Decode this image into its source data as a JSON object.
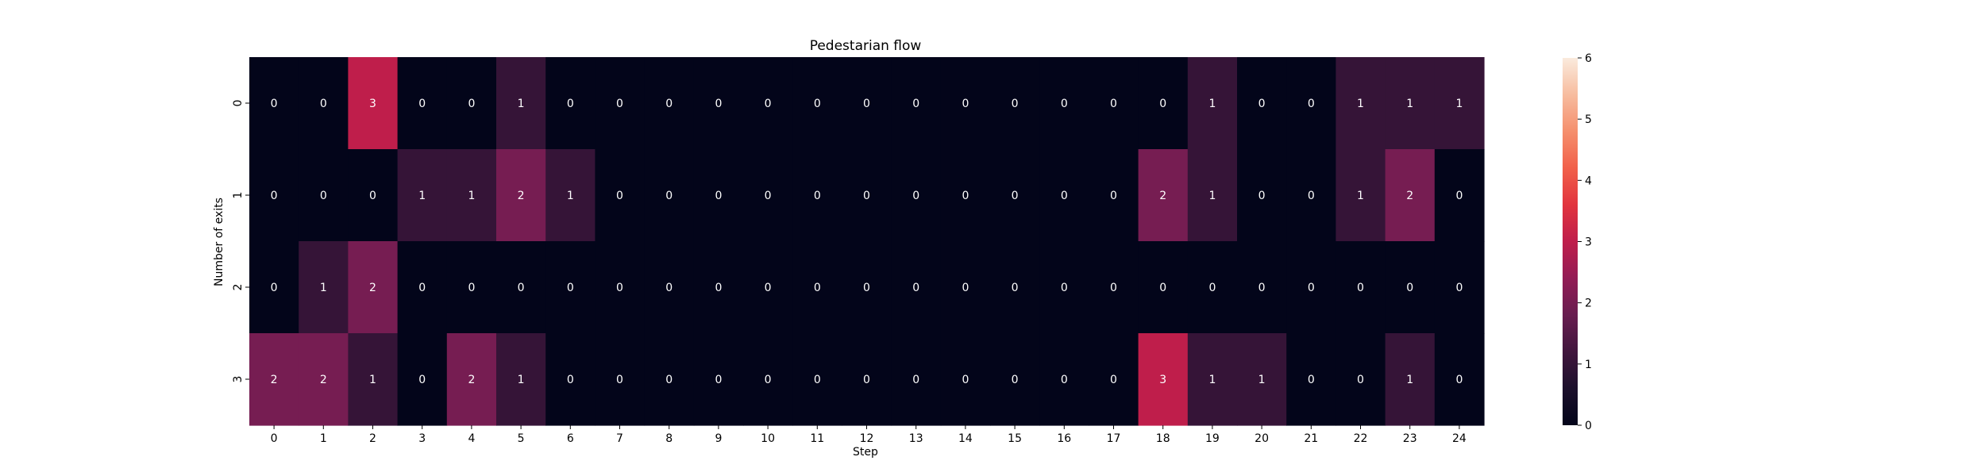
{
  "chart_data": {
    "type": "heatmap",
    "title": "Pedestarian flow",
    "xlabel": "Step",
    "ylabel": "Number of exits",
    "x_labels": [
      "0",
      "1",
      "2",
      "3",
      "4",
      "5",
      "6",
      "7",
      "8",
      "9",
      "10",
      "11",
      "12",
      "13",
      "14",
      "15",
      "16",
      "17",
      "18",
      "19",
      "20",
      "21",
      "22",
      "23",
      "24"
    ],
    "y_labels": [
      "0",
      "1",
      "2",
      "3"
    ],
    "values": [
      [
        0,
        0,
        3,
        0,
        0,
        1,
        0,
        0,
        0,
        0,
        0,
        0,
        0,
        0,
        0,
        0,
        0,
        0,
        0,
        1,
        0,
        0,
        1,
        1,
        1
      ],
      [
        0,
        0,
        0,
        1,
        1,
        2,
        1,
        0,
        0,
        0,
        0,
        0,
        0,
        0,
        0,
        0,
        0,
        0,
        2,
        1,
        0,
        0,
        1,
        2,
        0
      ],
      [
        0,
        1,
        2,
        0,
        0,
        0,
        0,
        0,
        0,
        0,
        0,
        0,
        0,
        0,
        0,
        0,
        0,
        0,
        0,
        0,
        0,
        0,
        0,
        0,
        0
      ],
      [
        2,
        2,
        1,
        0,
        2,
        1,
        0,
        0,
        0,
        0,
        0,
        0,
        0,
        0,
        0,
        0,
        0,
        0,
        3,
        1,
        1,
        0,
        0,
        1,
        0
      ]
    ],
    "colorbar": {
      "range": [
        0,
        6
      ],
      "ticks": [
        "0",
        "1",
        "2",
        "3",
        "4",
        "5",
        "6"
      ],
      "colormap": "rocket"
    },
    "annotated": true
  }
}
